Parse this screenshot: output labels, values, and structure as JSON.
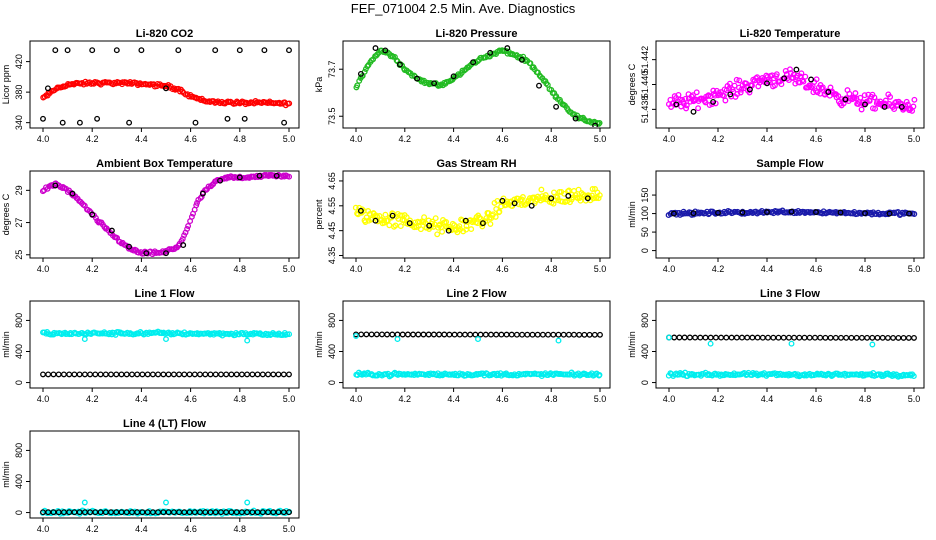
{
  "title": "FEF_071004  2.5 Min. Ave. Diagnostics",
  "chart_data": [
    {
      "type": "scatter",
      "title": "Li-820 CO2",
      "ylabel": "Licor ppm",
      "xlim": [
        4.0,
        5.0
      ],
      "ylim": [
        333,
        447
      ],
      "xticks": [
        "4.0",
        "4.2",
        "4.4",
        "4.6",
        "4.8",
        "5.0"
      ],
      "yticks": [
        340,
        380,
        420
      ],
      "series": [
        {
          "color": "#ff0000",
          "style": "dense",
          "x": [
            4.0,
            4.05,
            4.1,
            4.2,
            4.3,
            4.4,
            4.5,
            4.55,
            4.6,
            4.65,
            4.7,
            4.8,
            4.9,
            5.0
          ],
          "y": [
            372,
            384,
            390,
            392,
            392,
            391,
            388,
            384,
            375,
            369,
            367,
            366,
            366,
            365
          ]
        },
        {
          "color": "#000000",
          "style": "sparse",
          "x": [
            4.0,
            4.02,
            4.05,
            4.08,
            4.1,
            4.15,
            4.2,
            4.22,
            4.3,
            4.35,
            4.4,
            4.5,
            4.55,
            4.62,
            4.7,
            4.75,
            4.8,
            4.82,
            4.9,
            4.98,
            5.0
          ],
          "y": [
            345,
            385,
            435,
            340,
            435,
            340,
            435,
            345,
            435,
            340,
            435,
            385,
            435,
            340,
            435,
            345,
            435,
            345,
            435,
            340,
            435
          ]
        }
      ]
    },
    {
      "type": "scatter",
      "title": "Li-820 Pressure",
      "ylabel": "kPa",
      "xlim": [
        4.0,
        5.0
      ],
      "ylim": [
        73.45,
        73.82
      ],
      "xticks": [
        "4.0",
        "4.2",
        "4.4",
        "4.6",
        "4.8",
        "5.0"
      ],
      "yticks": [
        73.5,
        73.7
      ],
      "ytick_labels": [
        "73.5",
        "73.7"
      ],
      "series": [
        {
          "color": "#22bb22",
          "style": "dense",
          "x": [
            4.0,
            4.05,
            4.1,
            4.15,
            4.2,
            4.25,
            4.3,
            4.35,
            4.4,
            4.45,
            4.5,
            4.55,
            4.6,
            4.65,
            4.7,
            4.75,
            4.8,
            4.85,
            4.9,
            4.95,
            5.0
          ],
          "y": [
            73.62,
            73.72,
            73.78,
            73.76,
            73.7,
            73.66,
            73.64,
            73.63,
            73.66,
            73.7,
            73.74,
            73.76,
            73.78,
            73.76,
            73.74,
            73.68,
            73.61,
            73.55,
            73.5,
            73.48,
            73.47
          ]
        },
        {
          "color": "#000000",
          "style": "sparse",
          "x": [
            4.02,
            4.08,
            4.12,
            4.18,
            4.25,
            4.32,
            4.4,
            4.48,
            4.55,
            4.62,
            4.68,
            4.75,
            4.82,
            4.9,
            4.98
          ],
          "y": [
            73.68,
            73.79,
            73.78,
            73.72,
            73.66,
            73.64,
            73.67,
            73.73,
            73.77,
            73.79,
            73.74,
            73.63,
            73.54,
            73.49,
            73.46
          ]
        }
      ]
    },
    {
      "type": "scatter",
      "title": "Li-820 Temperature",
      "ylabel": "degrees C",
      "xlim": [
        4.0,
        5.0
      ],
      "ylim": [
        51.4365,
        51.4435
      ],
      "xticks": [
        "4.0",
        "4.2",
        "4.4",
        "4.6",
        "4.8",
        "5.0"
      ],
      "yticks": [
        51.438,
        51.44,
        51.442
      ],
      "ytick_labels": [
        "51.438",
        "51.440",
        "51.442"
      ],
      "series": [
        {
          "color": "#ff00ff",
          "style": "noisy",
          "x": [
            4.0,
            4.1,
            4.2,
            4.3,
            4.4,
            4.5,
            4.6,
            4.7,
            4.8,
            4.9,
            5.0
          ],
          "y": [
            51.4385,
            51.4387,
            51.4392,
            51.4398,
            51.4405,
            51.4405,
            51.4398,
            51.439,
            51.4386,
            51.4384,
            51.4383
          ]
        },
        {
          "color": "#000000",
          "style": "sparse",
          "x": [
            4.03,
            4.1,
            4.18,
            4.25,
            4.33,
            4.4,
            4.47,
            4.52,
            4.58,
            4.65,
            4.72,
            4.8,
            4.88,
            4.95
          ],
          "y": [
            51.4384,
            51.4378,
            51.4386,
            51.4392,
            51.4396,
            51.4401,
            51.4405,
            51.4412,
            51.4404,
            51.4394,
            51.4388,
            51.4384,
            51.4382,
            51.4382
          ]
        }
      ]
    },
    {
      "type": "scatter",
      "title": "Ambient Box Temperature",
      "ylabel": "degrees C",
      "xlim": [
        4.0,
        5.0
      ],
      "ylim": [
        24.8,
        30.2
      ],
      "xticks": [
        "4.0",
        "4.2",
        "4.4",
        "4.6",
        "4.8",
        "5.0"
      ],
      "yticks": [
        25,
        27,
        29
      ],
      "series": [
        {
          "color": "#cc00cc",
          "style": "dense",
          "x": [
            4.0,
            4.05,
            4.1,
            4.15,
            4.2,
            4.25,
            4.3,
            4.35,
            4.4,
            4.45,
            4.5,
            4.55,
            4.58,
            4.6,
            4.63,
            4.66,
            4.7,
            4.75,
            4.8,
            4.9,
            5.0
          ],
          "y": [
            29.0,
            29.4,
            29.0,
            28.3,
            27.5,
            26.7,
            26.0,
            25.4,
            25.1,
            25.1,
            25.2,
            25.5,
            26.4,
            27.2,
            28.3,
            29.0,
            29.5,
            29.8,
            29.8,
            29.9,
            29.9
          ]
        },
        {
          "color": "#000000",
          "style": "sparse",
          "x": [
            4.05,
            4.12,
            4.2,
            4.28,
            4.35,
            4.42,
            4.5,
            4.57,
            4.65,
            4.72,
            4.8,
            4.88,
            4.95
          ],
          "y": [
            29.3,
            28.8,
            27.5,
            26.5,
            25.5,
            25.1,
            25.1,
            25.6,
            28.8,
            29.6,
            29.8,
            29.9,
            29.9
          ]
        }
      ]
    },
    {
      "type": "scatter",
      "title": "Gas Stream RH",
      "ylabel": "percent",
      "xlim": [
        4.0,
        5.0
      ],
      "ylim": [
        4.34,
        4.69
      ],
      "xticks": [
        "4.0",
        "4.2",
        "4.4",
        "4.6",
        "4.8",
        "5.0"
      ],
      "yticks": [
        4.35,
        4.45,
        4.55,
        4.65
      ],
      "ytick_labels": [
        "4.35",
        "4.45",
        "4.55",
        "4.65"
      ],
      "series": [
        {
          "color": "#ffff00",
          "style": "noisy",
          "x": [
            4.0,
            4.1,
            4.2,
            4.3,
            4.4,
            4.5,
            4.55,
            4.6,
            4.7,
            4.8,
            4.9,
            5.0
          ],
          "y": [
            4.52,
            4.5,
            4.49,
            4.47,
            4.46,
            4.49,
            4.5,
            4.56,
            4.57,
            4.58,
            4.59,
            4.6
          ]
        },
        {
          "color": "#000000",
          "style": "sparse",
          "x": [
            4.02,
            4.08,
            4.15,
            4.22,
            4.3,
            4.38,
            4.45,
            4.52,
            4.6,
            4.65,
            4.72,
            4.8,
            4.87,
            4.95
          ],
          "y": [
            4.53,
            4.49,
            4.51,
            4.48,
            4.47,
            4.45,
            4.49,
            4.48,
            4.57,
            4.56,
            4.55,
            4.58,
            4.59,
            4.58
          ]
        }
      ]
    },
    {
      "type": "scatter",
      "title": "Sample Flow",
      "ylabel": "ml/min",
      "xlim": [
        4.0,
        5.0
      ],
      "ylim": [
        -20,
        215
      ],
      "xticks": [
        "4.0",
        "4.2",
        "4.4",
        "4.6",
        "4.8",
        "5.0"
      ],
      "yticks": [
        0,
        50,
        100,
        150
      ],
      "series": [
        {
          "color": "#1a1aaa",
          "style": "dense",
          "x": [
            4.0,
            4.2,
            4.4,
            4.5,
            4.6,
            4.8,
            5.0
          ],
          "y": [
            100,
            102,
            104,
            105,
            104,
            101,
            100
          ]
        },
        {
          "color": "#000000",
          "style": "sparse",
          "x": [
            4.02,
            4.1,
            4.2,
            4.3,
            4.4,
            4.5,
            4.6,
            4.7,
            4.8,
            4.9,
            4.98
          ],
          "y": [
            100,
            101,
            102,
            103,
            104,
            105,
            104,
            103,
            101,
            100,
            100
          ]
        }
      ]
    },
    {
      "type": "scatter",
      "title": "Line 1 Flow",
      "ylabel": "ml/min",
      "xlim": [
        4.0,
        5.0
      ],
      "ylim": [
        -70,
        1050
      ],
      "xticks": [
        "4.0",
        "4.2",
        "4.4",
        "4.6",
        "4.8",
        "5.0"
      ],
      "yticks": [
        0,
        400,
        800
      ],
      "series": [
        {
          "color": "#00eeee",
          "style": "dense",
          "x": [
            4.0,
            4.5,
            5.0
          ],
          "y": [
            630,
            635,
            620
          ]
        },
        {
          "color": "#000000",
          "style": "sparse",
          "x": [
            4.0,
            5.0
          ],
          "y": [
            105,
            105
          ]
        },
        {
          "color": "#00eeee",
          "style": "sparse",
          "x": [
            4.17,
            4.5,
            4.83
          ],
          "y": [
            560,
            560,
            540
          ]
        }
      ]
    },
    {
      "type": "scatter",
      "title": "Line 2 Flow",
      "ylabel": "ml/min",
      "xlim": [
        4.0,
        5.0
      ],
      "ylim": [
        -70,
        1050
      ],
      "xticks": [
        "4.0",
        "4.2",
        "4.4",
        "4.6",
        "4.8",
        "5.0"
      ],
      "yticks": [
        0,
        400,
        800
      ],
      "series": [
        {
          "color": "#00eeee",
          "style": "dense",
          "x": [
            4.0,
            5.0
          ],
          "y": [
            105,
            105
          ]
        },
        {
          "color": "#000000",
          "style": "sparse",
          "x": [
            4.0,
            5.0
          ],
          "y": [
            620,
            615
          ]
        },
        {
          "color": "#00eeee",
          "style": "sparse",
          "x": [
            4.0,
            4.17,
            4.5,
            4.83
          ],
          "y": [
            600,
            560,
            560,
            540
          ]
        }
      ]
    },
    {
      "type": "scatter",
      "title": "Line 3 Flow",
      "ylabel": "ml/min",
      "xlim": [
        4.0,
        5.0
      ],
      "ylim": [
        -70,
        1050
      ],
      "xticks": [
        "4.0",
        "4.2",
        "4.4",
        "4.6",
        "4.8",
        "5.0"
      ],
      "yticks": [
        0,
        400,
        800
      ],
      "series": [
        {
          "color": "#00eeee",
          "style": "dense",
          "x": [
            4.0,
            5.0
          ],
          "y": [
            105,
            100
          ]
        },
        {
          "color": "#000000",
          "style": "sparse",
          "x": [
            4.0,
            5.0
          ],
          "y": [
            580,
            575
          ]
        },
        {
          "color": "#00eeee",
          "style": "sparse",
          "x": [
            4.0,
            4.17,
            4.5,
            4.83
          ],
          "y": [
            580,
            500,
            500,
            490
          ]
        }
      ]
    },
    {
      "type": "scatter",
      "title": "Line 4 (LT) Flow",
      "ylabel": "ml/min",
      "xlim": [
        4.0,
        5.0
      ],
      "ylim": [
        -70,
        1050
      ],
      "xticks": [
        "4.0",
        "4.2",
        "4.4",
        "4.6",
        "4.8",
        "5.0"
      ],
      "yticks": [
        0,
        400,
        800
      ],
      "series": [
        {
          "color": "#00eeee",
          "style": "dense",
          "x": [
            4.0,
            5.0
          ],
          "y": [
            5,
            5
          ]
        },
        {
          "color": "#000000",
          "style": "sparse",
          "x": [
            4.0,
            5.0
          ],
          "y": [
            5,
            5
          ]
        },
        {
          "color": "#00eeee",
          "style": "sparse",
          "x": [
            4.17,
            4.5,
            4.83
          ],
          "y": [
            130,
            130,
            130
          ]
        }
      ]
    }
  ]
}
